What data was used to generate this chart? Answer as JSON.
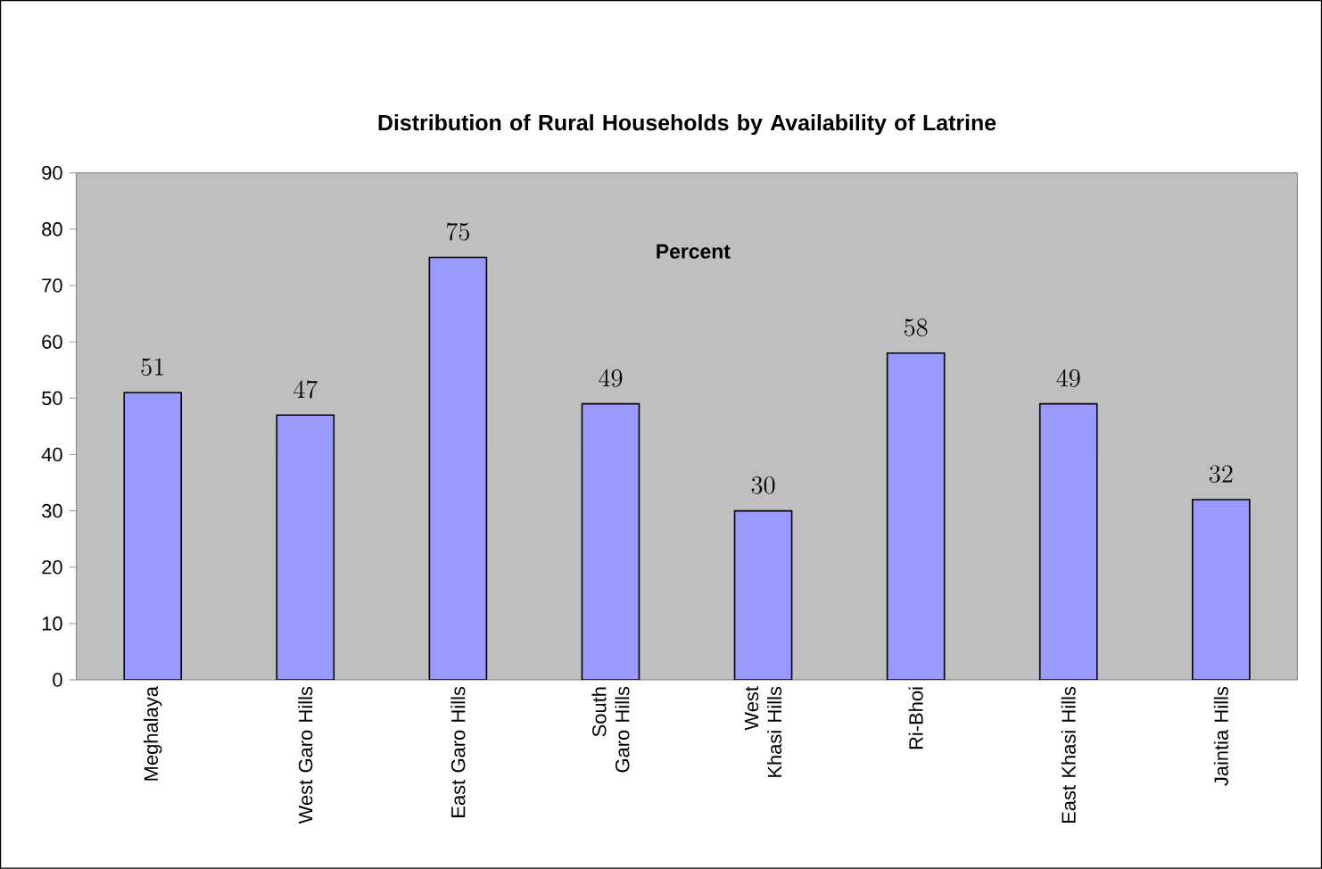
{
  "chart_data": {
    "type": "bar",
    "title": "Distribution of Rural Households by Availability of Latrine",
    "annotations": [
      "Percent"
    ],
    "categories": [
      "Meghalaya",
      "West Garo Hills",
      "East Garo Hills",
      "South Garo Hills",
      "West Khasi Hills",
      "Ri-Bhoi",
      "East Khasi Hills",
      "Jaintia Hills"
    ],
    "values": [
      51,
      47,
      75,
      49,
      30,
      58,
      49,
      32
    ],
    "color": "#9999ff",
    "ylim": [
      0,
      90
    ],
    "yticks": [
      0,
      10,
      20,
      30,
      40,
      50,
      60,
      70,
      80,
      90
    ],
    "data_labels": true
  }
}
